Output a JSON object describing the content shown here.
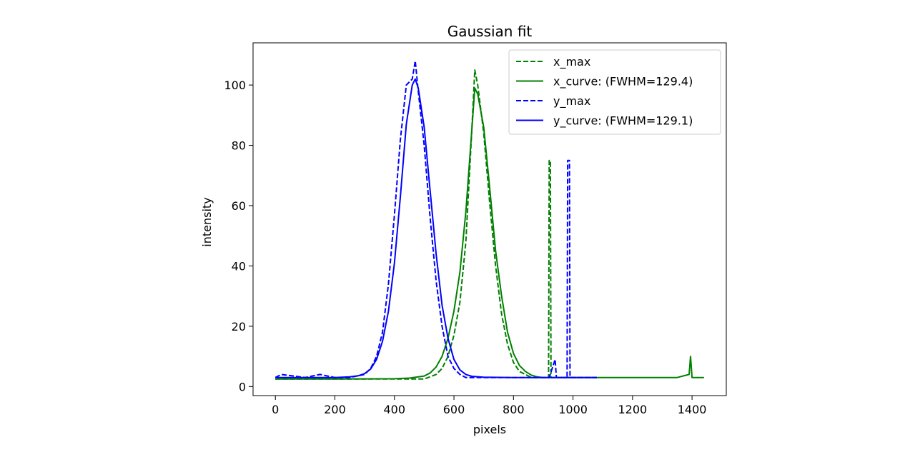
{
  "chart_data": {
    "type": "line",
    "title": "Gaussian fit",
    "xlabel": "pixels",
    "ylabel": "intensity",
    "xlim": [
      -75,
      1515
    ],
    "ylim": [
      -3,
      114
    ],
    "xticks": [
      0,
      200,
      400,
      600,
      800,
      1000,
      1200,
      1400
    ],
    "yticks": [
      0,
      20,
      40,
      60,
      80,
      100
    ],
    "legend_position": "upper right",
    "grid": false,
    "series": [
      {
        "name": "x_max",
        "color": "#008000",
        "style": "dashed",
        "x": [
          0,
          100,
          200,
          300,
          400,
          500,
          540,
          560,
          580,
          600,
          620,
          640,
          660,
          670,
          680,
          700,
          720,
          740,
          760,
          780,
          800,
          820,
          840,
          860,
          880,
          900,
          918,
          920,
          924,
          926,
          960,
          1000,
          1080
        ],
        "y": [
          2.5,
          2.5,
          2.5,
          2.5,
          2.5,
          2.5,
          4,
          6,
          10,
          17,
          28,
          48,
          85,
          105,
          100,
          84,
          61,
          40,
          24,
          14,
          8,
          5,
          4,
          3,
          3,
          3,
          3,
          75,
          75,
          3,
          3,
          3,
          3
        ]
      },
      {
        "name": "x_curve: (FWHM=129.4)",
        "color": "#008000",
        "style": "solid",
        "x": [
          0,
          200,
          400,
          450,
          500,
          520,
          540,
          560,
          580,
          600,
          620,
          640,
          660,
          670,
          680,
          700,
          720,
          740,
          760,
          780,
          800,
          820,
          840,
          860,
          880,
          900,
          950,
          1000,
          1100,
          1200,
          1300,
          1350,
          1390,
          1395,
          1400,
          1405,
          1410,
          1440
        ],
        "y": [
          2.5,
          2.5,
          2.6,
          2.8,
          3.5,
          4.5,
          6.5,
          10,
          16,
          25,
          38,
          58,
          85,
          99,
          97,
          86,
          66,
          45,
          30,
          18,
          11,
          7,
          5,
          3.8,
          3.2,
          3,
          3,
          3,
          3,
          3,
          3,
          3,
          4,
          10,
          3,
          3,
          3,
          3
        ]
      },
      {
        "name": "y_max",
        "color": "#0000ff",
        "style": "dashed",
        "x": [
          0,
          20,
          100,
          150,
          200,
          250,
          300,
          320,
          340,
          360,
          380,
          400,
          420,
          440,
          460,
          470,
          480,
          500,
          520,
          540,
          560,
          580,
          600,
          620,
          640,
          680,
          720,
          760,
          800,
          880,
          920,
          940,
          944,
          950,
          980,
          982,
          988,
          990,
          1020,
          1080
        ],
        "y": [
          3,
          4,
          3,
          4,
          3,
          3,
          4,
          6,
          10,
          18,
          34,
          57,
          82,
          100,
          102,
          108,
          98,
          80,
          56,
          35,
          20,
          10,
          6,
          4,
          3,
          3,
          3,
          3,
          3,
          3,
          3,
          9,
          3,
          3,
          3,
          75,
          75,
          3,
          3,
          3
        ]
      },
      {
        "name": "y_curve: (FWHM=129.1)",
        "color": "#0000ff",
        "style": "solid",
        "x": [
          0,
          200,
          250,
          280,
          300,
          320,
          340,
          360,
          380,
          400,
          420,
          440,
          460,
          470,
          480,
          500,
          520,
          540,
          560,
          580,
          600,
          620,
          640,
          660,
          700,
          800,
          900,
          1000,
          1080
        ],
        "y": [
          3,
          3,
          3.2,
          3.6,
          4.3,
          5.8,
          9,
          15,
          25,
          41,
          63,
          87,
          100,
          102,
          99,
          86,
          65,
          44,
          27,
          16,
          9,
          5.5,
          4,
          3.4,
          3.1,
          3,
          3,
          3,
          3
        ]
      }
    ]
  }
}
